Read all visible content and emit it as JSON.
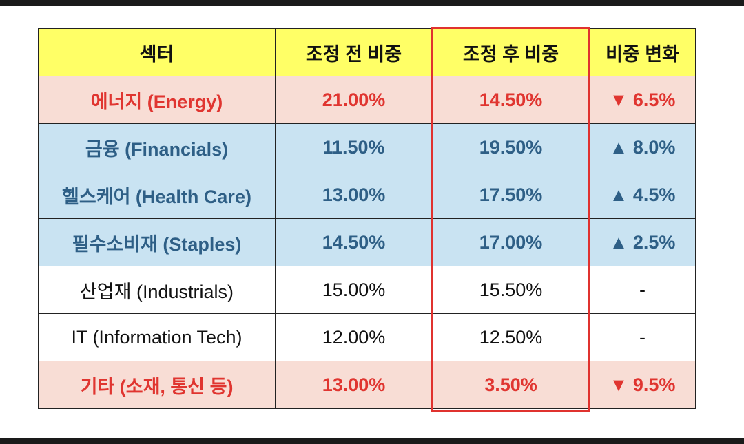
{
  "table": {
    "headers": [
      "섹터",
      "조정 전 비중",
      "조정 후 비중",
      "비중 변화"
    ],
    "rows": [
      {
        "sector": "에너지 (Energy)",
        "before": "21.00%",
        "after": "14.50%",
        "change": "▼ 6.5%",
        "style": "red"
      },
      {
        "sector": "금융 (Financials)",
        "before": "11.50%",
        "after": "19.50%",
        "change": "▲ 8.0%",
        "style": "blue"
      },
      {
        "sector": "헬스케어 (Health Care)",
        "before": "13.00%",
        "after": "17.50%",
        "change": "▲ 4.5%",
        "style": "blue"
      },
      {
        "sector": "필수소비재 (Staples)",
        "before": "14.50%",
        "after": "17.00%",
        "change": "▲ 2.5%",
        "style": "blue"
      },
      {
        "sector": "산업재 (Industrials)",
        "before": "15.00%",
        "after": "15.50%",
        "change": "-",
        "style": "plain"
      },
      {
        "sector": "IT (Information Tech)",
        "before": "12.00%",
        "after": "12.50%",
        "change": "-",
        "style": "plain"
      },
      {
        "sector": "기타 (소재, 통신 등)",
        "before": "13.00%",
        "after": "3.50%",
        "change": "▼ 9.5%",
        "style": "red"
      }
    ]
  },
  "colors": {
    "header_bg": "#ffff66",
    "red_row_bg": "#f8ddd5",
    "red_text": "#e03530",
    "blue_row_bg": "#c9e3f2",
    "blue_text": "#2e5f86",
    "highlight_frame": "#e0322f"
  }
}
